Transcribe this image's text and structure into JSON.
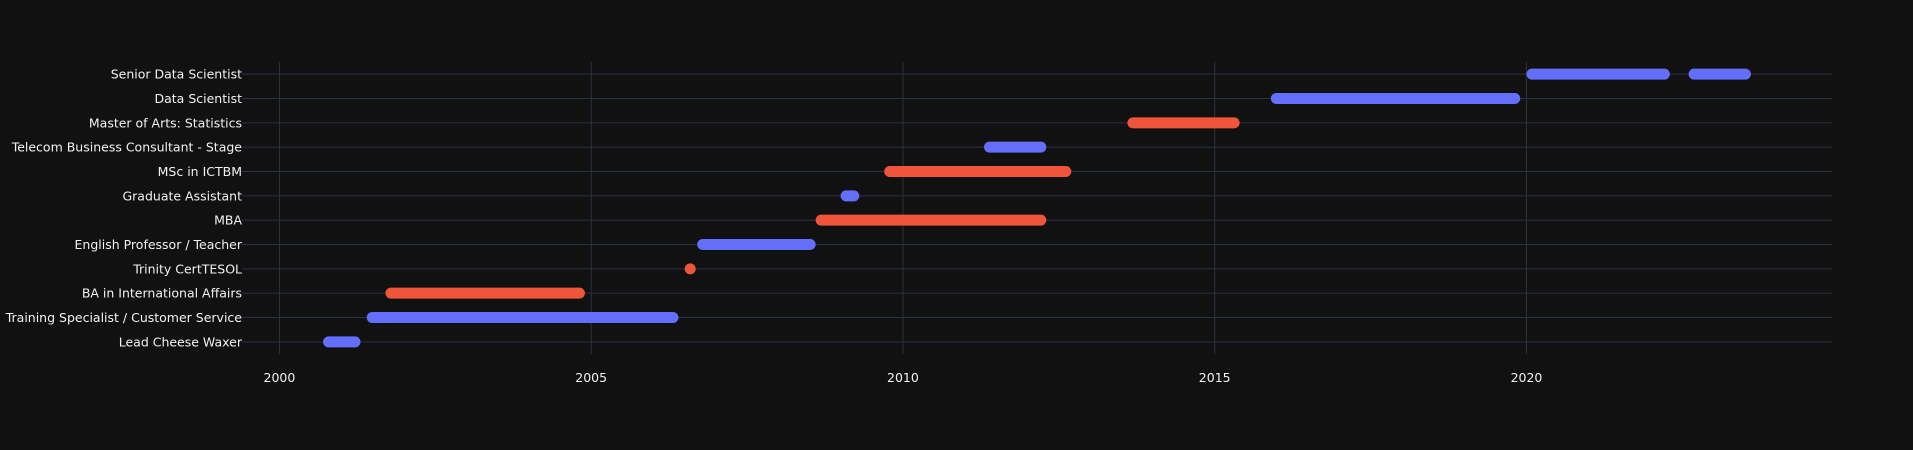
{
  "chart_data": {
    "type": "gantt",
    "title": "",
    "xlabel": "",
    "ylabel": "",
    "xlim": [
      1999.4,
      2024.9
    ],
    "xticks": [
      2000,
      2005,
      2010,
      2015,
      2020
    ],
    "grid": true,
    "legend": "none",
    "colors": {
      "a": "#636efa",
      "b": "#ef553b",
      "grid": "#283442",
      "bg": "#111111",
      "text": "#f2f2f2"
    },
    "categories": [
      "Lead Cheese Waxer",
      "Training Specialist / Customer Service",
      "BA in International Affairs",
      "Trinity CertTESOL",
      "English Professor / Teacher",
      "MBA",
      "Graduate Assistant",
      "MSc in ICTBM",
      "Telecom Business Consultant - Stage",
      "Master of Arts: Statistics",
      "Data Scientist",
      "Senior Data Scientist"
    ],
    "tasks": [
      {
        "label": "Lead Cheese Waxer",
        "start": 2000.7,
        "end": 2001.3,
        "color": "a"
      },
      {
        "label": "Training Specialist / Customer Service",
        "start": 2001.4,
        "end": 2006.4,
        "color": "a"
      },
      {
        "label": "BA in International Affairs",
        "start": 2001.7,
        "end": 2004.9,
        "color": "b"
      },
      {
        "label": "Trinity CertTESOL",
        "start": 2006.5,
        "end": 2006.6,
        "color": "b"
      },
      {
        "label": "English Professor / Teacher",
        "start": 2006.7,
        "end": 2008.6,
        "color": "a"
      },
      {
        "label": "MBA",
        "start": 2008.6,
        "end": 2012.3,
        "color": "b"
      },
      {
        "label": "Graduate Assistant",
        "start": 2009.0,
        "end": 2009.3,
        "color": "a"
      },
      {
        "label": "MSc in ICTBM",
        "start": 2009.7,
        "end": 2012.7,
        "color": "b"
      },
      {
        "label": "Telecom Business Consultant - Stage",
        "start": 2011.3,
        "end": 2012.3,
        "color": "a"
      },
      {
        "label": "Master of Arts: Statistics",
        "start": 2013.6,
        "end": 2015.4,
        "color": "b"
      },
      {
        "label": "Data Scientist",
        "start": 2015.9,
        "end": 2019.9,
        "color": "a"
      },
      {
        "label": "Senior Data Scientist",
        "start": 2020.0,
        "end": 2022.3,
        "color": "a"
      },
      {
        "label": "Senior Data Scientist",
        "start": 2022.6,
        "end": 2023.6,
        "color": "a"
      }
    ]
  }
}
